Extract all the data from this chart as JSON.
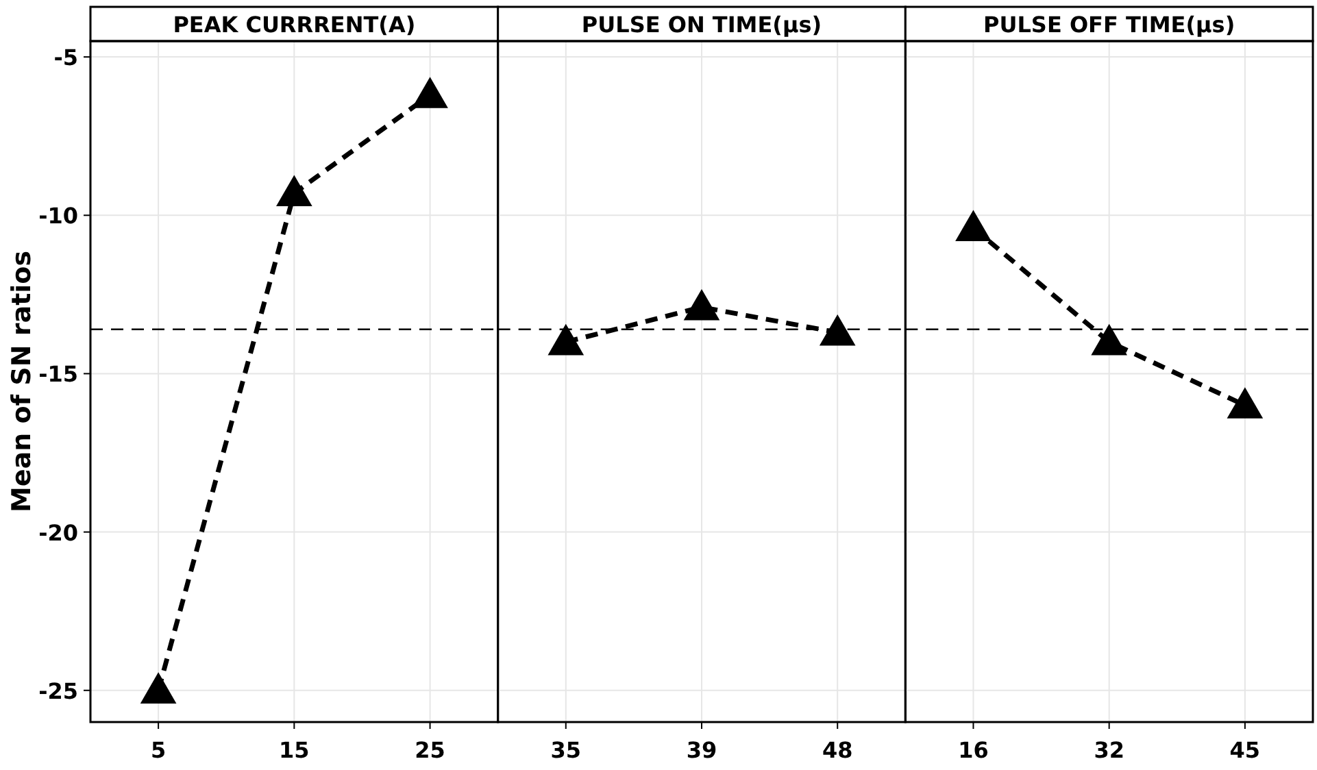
{
  "chart_data": [
    {
      "type": "line",
      "title": "PEAK CURRRENT(A)",
      "ylabel": "Mean of SN ratios",
      "categories": [
        "5",
        "15",
        "25"
      ],
      "series": [
        {
          "color": "#000000",
          "values": [
            -25.0,
            -9.3,
            -6.2
          ]
        }
      ],
      "ylim": [
        -26,
        -4.5
      ],
      "yticks": [
        -25,
        -20,
        -15,
        -10,
        -5
      ],
      "grid": true,
      "marker": "triangle",
      "line_style": "dashed",
      "ref_lines": [
        {
          "axis": "y",
          "value": -13.6,
          "line_style": "dashed",
          "color": "#000000"
        }
      ]
    },
    {
      "type": "line",
      "title": "PULSE ON TIME(μs)",
      "categories": [
        "35",
        "39",
        "48"
      ],
      "series": [
        {
          "color": "#000000",
          "values": [
            -14.0,
            -12.9,
            -13.7
          ]
        }
      ],
      "ylim": [
        -26,
        -4.5
      ],
      "yticks": [
        -25,
        -20,
        -15,
        -10,
        -5
      ],
      "tick_labels": "x",
      "grid": true,
      "marker": "triangle",
      "line_style": "dashed",
      "ref_lines": [
        {
          "axis": "y",
          "value": -13.6,
          "line_style": "dashed",
          "color": "#000000"
        }
      ]
    },
    {
      "type": "line",
      "title": "PULSE OFF TIME(μs)",
      "categories": [
        "16",
        "32",
        "45"
      ],
      "series": [
        {
          "color": "#000000",
          "values": [
            -10.4,
            -14.0,
            -16.0
          ]
        }
      ],
      "ylim": [
        -26,
        -4.5
      ],
      "yticks": [
        -25,
        -20,
        -15,
        -10,
        -5
      ],
      "tick_labels": "x",
      "grid": true,
      "marker": "triangle",
      "line_style": "dashed",
      "ref_lines": [
        {
          "axis": "y",
          "value": -13.6,
          "line_style": "dashed",
          "color": "#000000"
        }
      ]
    }
  ]
}
